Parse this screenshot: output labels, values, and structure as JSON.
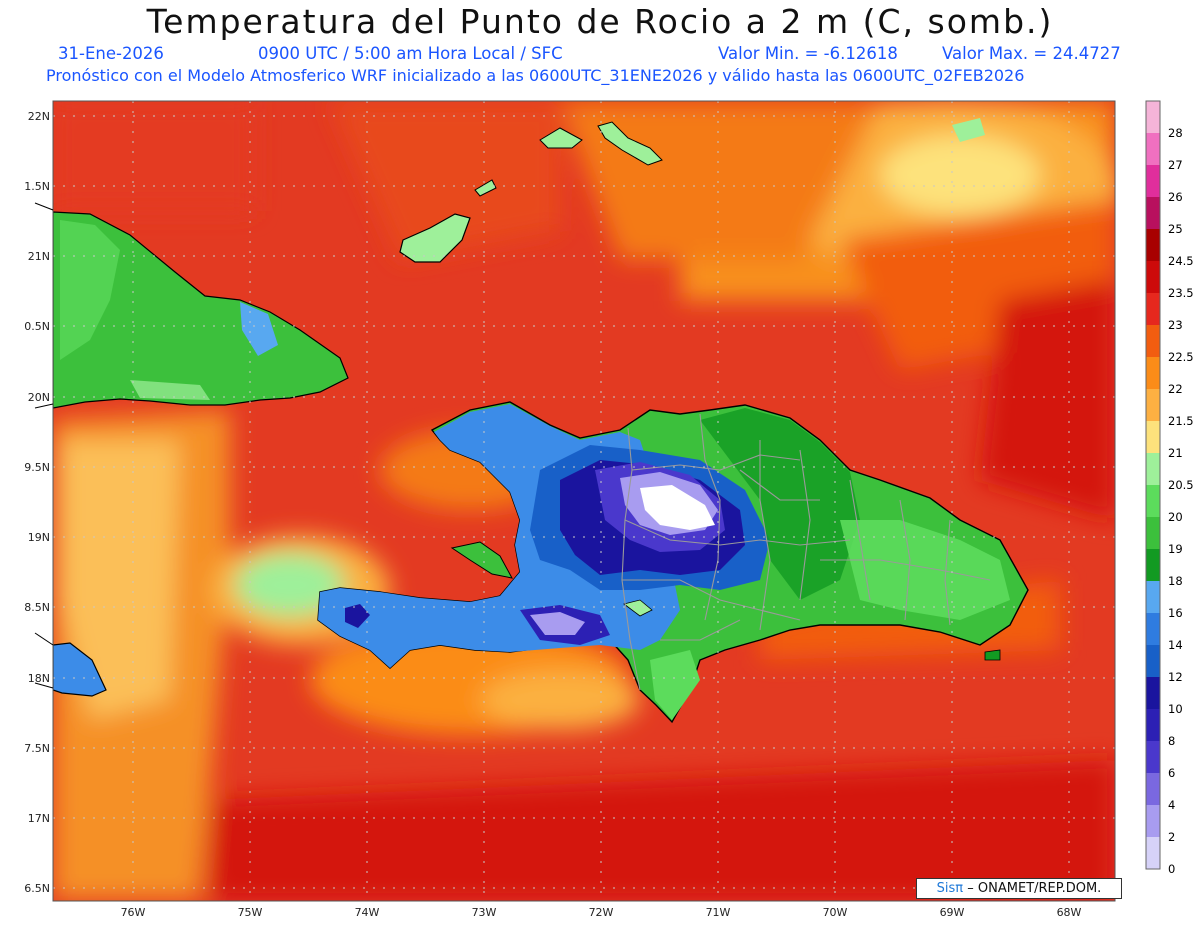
{
  "header": {
    "title": "Temperatura del Punto de Rocio a 2 m (C, somb.)",
    "date": "31-Ene-2026",
    "time": "0900 UTC / 5:00 am Hora Local / SFC",
    "min": "Valor Min. = -6.12618",
    "max": "Valor Max. = 24.4727",
    "forecast": "Pronóstico con el Modelo Atmosferico WRF inicializado a las 0600UTC_31ENE2026 y válido hasta las  0600UTC_02FEB2026"
  },
  "axes": {
    "lat": [
      "22N",
      "1.5N",
      "21N",
      "0.5N",
      "20N",
      "9.5N",
      "19N",
      "8.5N",
      "18N",
      "7.5N",
      "17N",
      "6.5N"
    ],
    "lon": [
      "76W",
      "75W",
      "74W",
      "73W",
      "72W",
      "71W",
      "70W",
      "69W",
      "68W"
    ]
  },
  "colorbar": {
    "levels": [
      {
        "label": "28",
        "color": "#f5b4d8"
      },
      {
        "label": "27",
        "color": "#f070c0"
      },
      {
        "label": "26",
        "color": "#e02e9c"
      },
      {
        "label": "25",
        "color": "#b8105e"
      },
      {
        "label": "24.5",
        "color": "#a80000"
      },
      {
        "label": "23.5",
        "color": "#cd0a0a"
      },
      {
        "label": "23",
        "color": "#e6281e"
      },
      {
        "label": "22.5",
        "color": "#f25d10"
      },
      {
        "label": "22",
        "color": "#fb8c18"
      },
      {
        "label": "21.5",
        "color": "#fdb042"
      },
      {
        "label": "21",
        "color": "#fde27c"
      },
      {
        "label": "20.5",
        "color": "#9ef09a"
      },
      {
        "label": "20",
        "color": "#5cdc5c"
      },
      {
        "label": "19",
        "color": "#3cc03c"
      },
      {
        "label": "18",
        "color": "#129a22"
      },
      {
        "label": "16",
        "color": "#58a8f0"
      },
      {
        "label": "14",
        "color": "#2f7ce0"
      },
      {
        "label": "12",
        "color": "#1860c8"
      },
      {
        "label": "10",
        "color": "#1a149e"
      },
      {
        "label": "8",
        "color": "#2c20b4"
      },
      {
        "label": "6",
        "color": "#4a38cc"
      },
      {
        "label": "4",
        "color": "#7a68e0"
      },
      {
        "label": "2",
        "color": "#a89cf0"
      },
      {
        "label": "0",
        "color": "#d6d2f8"
      }
    ]
  },
  "credit": {
    "logo": "Sisπ",
    "text": "– ONAMET/REP.DOM."
  }
}
